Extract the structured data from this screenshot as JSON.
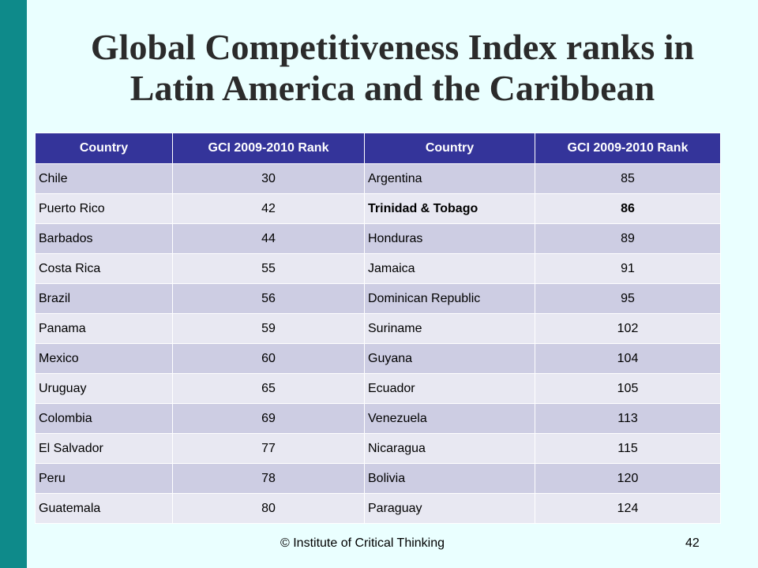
{
  "title": {
    "line1": "Global Competitiveness Index ranks in",
    "line2": "Latin America and the Caribbean"
  },
  "table": {
    "headers": [
      "Country",
      "GCI 2009-2010 Rank",
      "Country",
      "GCI 2009-2010 Rank"
    ],
    "rows": [
      [
        "Chile",
        "30",
        "Argentina",
        "85"
      ],
      [
        "Puerto Rico",
        "42",
        "Trinidad & Tobago",
        "86"
      ],
      [
        "Barbados",
        "44",
        "Honduras",
        "89"
      ],
      [
        "Costa Rica",
        "55",
        "Jamaica",
        "91"
      ],
      [
        "Brazil",
        "56",
        "Dominican Republic",
        "95"
      ],
      [
        "Panama",
        "59",
        "Suriname",
        "102"
      ],
      [
        "Mexico",
        "60",
        "Guyana",
        "104"
      ],
      [
        "Uruguay",
        "65",
        "Ecuador",
        "105"
      ],
      [
        "Colombia",
        "69",
        "Venezuela",
        "113"
      ],
      [
        "El Salvador",
        "77",
        "Nicaragua",
        "115"
      ],
      [
        "Peru",
        "78",
        "Bolivia",
        "120"
      ],
      [
        "Guatemala",
        "80",
        "Paraguay",
        "124"
      ]
    ]
  },
  "footer": {
    "copyright": "© Institute of Critical Thinking",
    "page_number": "42"
  },
  "colors": {
    "background": "#eaffff",
    "left_bar": "#0e8a8a",
    "header_fill": "#34349a",
    "row_odd": "#cdcde3",
    "row_even": "#e8e8f2"
  }
}
